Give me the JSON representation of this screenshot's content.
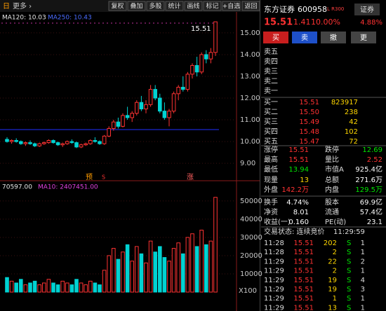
{
  "toolbar": {
    "period": "日",
    "more": "更多 ›",
    "buttons": [
      "复权",
      "叠加",
      "多股",
      "统计",
      "画线",
      "标记",
      "+自选",
      "返回"
    ]
  },
  "indicators": {
    "ma120": "MA120: 10.03",
    "ma250": "MA250: 10.43"
  },
  "event_markers": [
    "预",
    "S",
    "涨"
  ],
  "chart_data": [
    {
      "type": "candlestick",
      "last_price_label": "15.51",
      "color_up": "#ff3232",
      "color_down": "#00d2d2",
      "ohlc": [
        [
          10.1,
          10.2,
          9.95,
          10.0
        ],
        [
          10.0,
          10.1,
          9.9,
          10.05
        ],
        [
          10.05,
          10.15,
          9.95,
          10.0
        ],
        [
          10.0,
          10.05,
          9.85,
          9.9
        ],
        [
          9.9,
          10.0,
          9.8,
          9.95
        ],
        [
          9.95,
          10.05,
          9.85,
          9.9
        ],
        [
          9.9,
          9.95,
          9.75,
          9.8
        ],
        [
          9.8,
          9.95,
          9.75,
          9.9
        ],
        [
          9.9,
          10.0,
          9.85,
          9.95
        ],
        [
          9.95,
          10.1,
          9.9,
          10.05
        ],
        [
          10.05,
          10.1,
          9.9,
          9.95
        ],
        [
          9.95,
          10.0,
          9.8,
          9.85
        ],
        [
          9.85,
          9.95,
          9.75,
          9.9
        ],
        [
          9.9,
          10.05,
          9.85,
          10.0
        ],
        [
          10.0,
          10.1,
          9.9,
          9.95
        ],
        [
          9.95,
          10.0,
          9.7,
          9.75
        ],
        [
          9.75,
          9.9,
          9.7,
          9.85
        ],
        [
          9.85,
          9.95,
          9.8,
          9.9
        ],
        [
          9.9,
          10.1,
          9.85,
          10.05
        ],
        [
          10.05,
          10.2,
          9.95,
          10.0
        ],
        [
          10.0,
          10.05,
          9.85,
          9.9
        ],
        [
          9.9,
          10.3,
          9.85,
          10.25
        ],
        [
          10.25,
          10.7,
          10.2,
          10.6
        ],
        [
          10.6,
          11.0,
          10.5,
          10.9
        ],
        [
          10.9,
          11.1,
          10.6,
          10.7
        ],
        [
          10.7,
          11.3,
          10.65,
          11.2
        ],
        [
          11.2,
          11.6,
          11.0,
          11.1
        ],
        [
          11.1,
          11.4,
          10.9,
          11.3
        ],
        [
          11.3,
          11.9,
          11.2,
          11.8
        ],
        [
          11.8,
          12.1,
          11.4,
          11.5
        ],
        [
          11.5,
          11.9,
          11.3,
          11.7
        ],
        [
          11.7,
          12.6,
          11.6,
          12.4
        ],
        [
          12.4,
          12.6,
          11.9,
          12.0
        ],
        [
          12.0,
          12.2,
          11.3,
          11.4
        ],
        [
          11.4,
          11.8,
          11.0,
          11.1
        ],
        [
          11.1,
          11.5,
          10.7,
          11.4
        ],
        [
          11.4,
          12.3,
          11.3,
          12.2
        ],
        [
          12.2,
          12.6,
          11.9,
          12.5
        ],
        [
          12.5,
          13.0,
          12.3,
          12.4
        ],
        [
          12.4,
          13.2,
          12.3,
          13.1
        ],
        [
          13.1,
          13.6,
          12.9,
          13.5
        ],
        [
          13.5,
          13.9,
          13.0,
          13.2
        ],
        [
          13.2,
          14.1,
          13.1,
          14.0
        ],
        [
          14.0,
          14.2,
          13.6,
          13.8
        ],
        [
          13.8,
          14.3,
          13.6,
          14.1
        ],
        [
          14.1,
          15.51,
          13.94,
          15.51
        ]
      ],
      "ylim": [
        8.52,
        15.61
      ],
      "yticks": [
        {
          "value": 9,
          "label": "9.00"
        },
        {
          "value": 10,
          "label": "10.00"
        },
        {
          "value": 11,
          "label": "11.00"
        },
        {
          "value": 12,
          "label": "12.00"
        },
        {
          "value": 13,
          "label": "13.00"
        },
        {
          "value": 14,
          "label": "14.00"
        },
        {
          "value": 15,
          "label": "15.00"
        }
      ]
    },
    {
      "type": "bar",
      "title": "70597.00",
      "subtitle": "MA10: 2407451.00",
      "unit_label": "X100",
      "values": [
        8000,
        6000,
        5000,
        7000,
        4000,
        5000,
        6000,
        4000,
        5000,
        7000,
        5000,
        4000,
        6000,
        5000,
        4000,
        7000,
        5000,
        4000,
        6000,
        5000,
        4000,
        12000,
        20000,
        24000,
        18000,
        22000,
        26000,
        17000,
        25000,
        21000,
        16000,
        28000,
        22000,
        25000,
        19000,
        17000,
        24000,
        27000,
        21000,
        30000,
        32000,
        25000,
        34000,
        26000,
        28000,
        52000
      ],
      "ylim": [
        0,
        56500
      ],
      "yticks": [
        10000,
        20000,
        30000,
        40000,
        50000
      ]
    }
  ],
  "quote": {
    "name": "东方证券",
    "code": "600958",
    "flags": "L R300",
    "sector": "证券",
    "price": "15.51",
    "change": "1.41",
    "pct": "10.00%",
    "sector_pct": "4.88%",
    "actions": [
      "买",
      "卖",
      "撤",
      "更"
    ]
  },
  "order_book": {
    "sell": [
      "卖五",
      "卖四",
      "卖三",
      "卖二",
      "卖一"
    ],
    "buy": [
      [
        "买一",
        "15.51",
        "823917"
      ],
      [
        "买二",
        "15.50",
        "238"
      ],
      [
        "买三",
        "15.49",
        "42"
      ],
      [
        "买四",
        "15.48",
        "102"
      ],
      [
        "买五",
        "15.47",
        "72"
      ]
    ]
  },
  "stats": [
    [
      "涨停",
      "15.51",
      "跌停",
      "12.69"
    ],
    [
      "最高",
      "15.51",
      "量比",
      "2.52"
    ],
    [
      "最低",
      "13.94",
      "市值A",
      "925.4亿"
    ],
    [
      "现量",
      "13",
      "总额",
      "271.6万"
    ],
    [
      "外盘",
      "142.2万",
      "内盘",
      "129.5万"
    ],
    [
      "换手",
      "4.74%",
      "股本",
      "69.9亿"
    ],
    [
      "净资",
      "8.01",
      "流通",
      "57.4亿"
    ],
    [
      "收益(一)",
      "0.160",
      "PE(动)",
      "23.1"
    ]
  ],
  "trade_status": {
    "label": "交易状态: 连续竞价",
    "time": "11:29:59"
  },
  "trades": [
    [
      "11:28",
      "15.51",
      "202",
      "S",
      "1"
    ],
    [
      "11:28",
      "15.51",
      "2",
      "S",
      "1"
    ],
    [
      "11:29",
      "15.51",
      "22",
      "S",
      "2"
    ],
    [
      "11:29",
      "15.51",
      "2",
      "S",
      "1"
    ],
    [
      "11:29",
      "15.51",
      "19",
      "S",
      "4"
    ],
    [
      "11:29",
      "15.51",
      "19",
      "S",
      "3"
    ],
    [
      "11:29",
      "15.51",
      "1",
      "S",
      "1"
    ],
    [
      "11:29",
      "15.51",
      "13",
      "S",
      "1"
    ]
  ]
}
